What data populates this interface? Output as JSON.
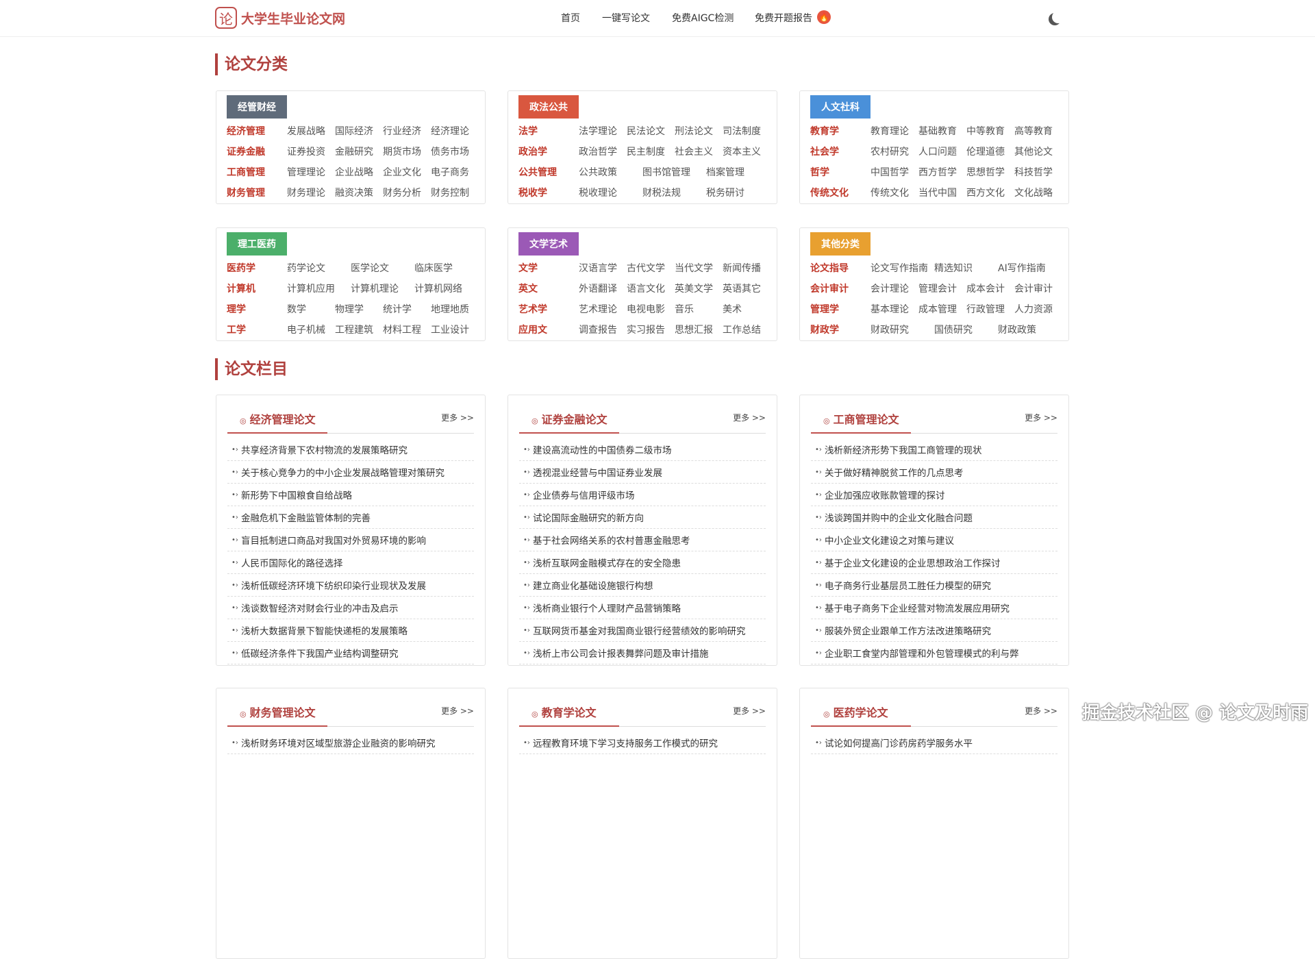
{
  "header": {
    "logo_mark": "论",
    "logo_text": "大学生毕业论文网",
    "nav": [
      "首页",
      "一键写论文",
      "免费AIGC检测",
      "免费开题报告"
    ],
    "fire_icon": "fire-icon",
    "theme_icon": "moon-icon"
  },
  "sections": {
    "categories_title": "论文分类",
    "columns_title": "论文栏目"
  },
  "categories": [
    {
      "badge": "经管财经",
      "color": "#5f6b7a",
      "rows": [
        {
          "label": "经济管理",
          "items": [
            "发展战略",
            "国际经济",
            "行业经济",
            "经济理论"
          ]
        },
        {
          "label": "证券金融",
          "items": [
            "证券投资",
            "金融研究",
            "期货市场",
            "债务市场"
          ]
        },
        {
          "label": "工商管理",
          "items": [
            "管理理论",
            "企业战略",
            "企业文化",
            "电子商务"
          ]
        },
        {
          "label": "财务管理",
          "items": [
            "财务理论",
            "融资决策",
            "财务分析",
            "财务控制"
          ]
        }
      ]
    },
    {
      "badge": "政法公共",
      "color": "#d9573f",
      "rows": [
        {
          "label": "法学",
          "items": [
            "法学理论",
            "民法论文",
            "刑法论文",
            "司法制度"
          ]
        },
        {
          "label": "政治学",
          "items": [
            "政治哲学",
            "民主制度",
            "社会主义",
            "资本主义"
          ]
        },
        {
          "label": "公共管理",
          "items": [
            "公共政策",
            "图书馆管理",
            "档案管理"
          ]
        },
        {
          "label": "税收学",
          "items": [
            "税收理论",
            "财税法规",
            "税务研讨"
          ]
        }
      ]
    },
    {
      "badge": "人文社科",
      "color": "#4a90d9",
      "rows": [
        {
          "label": "教育学",
          "items": [
            "教育理论",
            "基础教育",
            "中等教育",
            "高等教育"
          ]
        },
        {
          "label": "社会学",
          "items": [
            "农村研究",
            "人口问题",
            "伦理道德",
            "其他论文"
          ]
        },
        {
          "label": "哲学",
          "items": [
            "中国哲学",
            "西方哲学",
            "思想哲学",
            "科技哲学"
          ]
        },
        {
          "label": "传统文化",
          "items": [
            "传统文化",
            "当代中国",
            "西方文化",
            "文化战略"
          ]
        }
      ]
    },
    {
      "badge": "理工医药",
      "color": "#4caf6a",
      "rows": [
        {
          "label": "医药学",
          "items": [
            "药学论文",
            "医学论文",
            "临床医学"
          ]
        },
        {
          "label": "计算机",
          "items": [
            "计算机应用",
            "计算机理论",
            "计算机网络"
          ]
        },
        {
          "label": "理学",
          "items": [
            "数学",
            "物理学",
            "统计学",
            "地理地质"
          ]
        },
        {
          "label": "工学",
          "items": [
            "电子机械",
            "工程建筑",
            "材料工程",
            "工业设计"
          ]
        }
      ]
    },
    {
      "badge": "文学艺术",
      "color": "#9b59b6",
      "rows": [
        {
          "label": "文学",
          "items": [
            "汉语言学",
            "古代文学",
            "当代文学",
            "新闻传播"
          ]
        },
        {
          "label": "英文",
          "items": [
            "外语翻译",
            "语言文化",
            "英美文学",
            "英语其它"
          ]
        },
        {
          "label": "艺术学",
          "items": [
            "艺术理论",
            "电视电影",
            "音乐",
            "美术"
          ]
        },
        {
          "label": "应用文",
          "items": [
            "调查报告",
            "实习报告",
            "思想汇报",
            "工作总结"
          ]
        }
      ]
    },
    {
      "badge": "其他分类",
      "color": "#e8a030",
      "rows": [
        {
          "label": "论文指导",
          "items": [
            "论文写作指南",
            "精选知识",
            "AI写作指南"
          ]
        },
        {
          "label": "会计审计",
          "items": [
            "会计理论",
            "管理会计",
            "成本会计",
            "会计审计"
          ]
        },
        {
          "label": "管理学",
          "items": [
            "基本理论",
            "成本管理",
            "行政管理",
            "人力资源"
          ]
        },
        {
          "label": "财政学",
          "items": [
            "财政研究",
            "国债研究",
            "财政政策"
          ]
        }
      ]
    }
  ],
  "columns": [
    {
      "title": "经济管理论文",
      "more": "更多 >>",
      "items": [
        "共享经济背景下农村物流的发展策略研究",
        "关于核心竞争力的中小企业发展战略管理对策研究",
        "新形势下中国粮食自给战略",
        "金融危机下金融监管体制的完善",
        "盲目抵制进口商品对我国对外贸易环境的影响",
        "人民币国际化的路径选择",
        "浅析低碳经济环境下纺织印染行业现状及发展",
        "浅谈数智经济对财会行业的冲击及启示",
        "浅析大数据背景下智能快递柜的发展策略",
        "低碳经济条件下我国产业结构调整研究"
      ]
    },
    {
      "title": "证券金融论文",
      "more": "更多 >>",
      "items": [
        "建设高流动性的中国债券二级市场",
        "透视混业经营与中国证券业发展",
        "企业债券与信用评级市场",
        "试论国际金融研究的新方向",
        "基于社会网络关系的农村普惠金融思考",
        "浅析互联网金融模式存在的安全隐患",
        "建立商业化基础设施银行构想",
        "浅析商业银行个人理财产品营销策略",
        "互联网货币基金对我国商业银行经营绩效的影响研究",
        "浅析上市公司会计报表舞弊问题及审计措施"
      ]
    },
    {
      "title": "工商管理论文",
      "more": "更多 >>",
      "items": [
        "浅析新经济形势下我国工商管理的现状",
        "关于做好精神脱贫工作的几点思考",
        "企业加强应收账款管理的探讨",
        "浅谈跨国并购中的企业文化融合问题",
        "中小企业文化建设之对策与建议",
        "基于企业文化建设的企业思想政治工作探讨",
        "电子商务行业基层员工胜任力模型的研究",
        "基于电子商务下企业经营对物流发展应用研究",
        "服装外贸企业跟单工作方法改进策略研究",
        "企业职工食堂内部管理和外包管理模式的利与弊"
      ]
    },
    {
      "title": "财务管理论文",
      "more": "更多 >>",
      "items": [
        "浅析财务环境对区域型旅游企业融资的影响研究"
      ]
    },
    {
      "title": "教育学论文",
      "more": "更多 >>",
      "items": [
        "远程教育环境下学习支持服务工作模式的研究"
      ]
    },
    {
      "title": "医药学论文",
      "more": "更多 >>",
      "items": [
        "试论如何提高门诊药房药学服务水平"
      ]
    }
  ],
  "watermark": "掘金技术社区 @ 论文及时雨"
}
